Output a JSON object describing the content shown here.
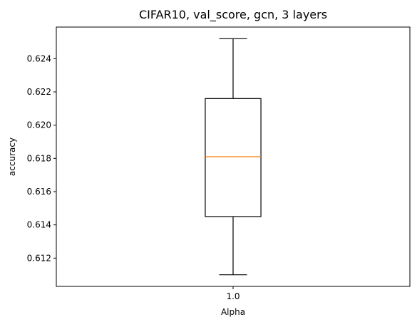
{
  "chart_data": {
    "type": "boxplot",
    "title": "CIFAR10, val_score, gcn, 3 layers",
    "xlabel": "Alpha",
    "ylabel": "accuracy",
    "categories": [
      "1.0"
    ],
    "ylim": [
      0.6103,
      0.6259
    ],
    "yticks": [
      0.612,
      0.614,
      0.616,
      0.618,
      0.62,
      0.622,
      0.624
    ],
    "ytick_labels": [
      "0.612",
      "0.614",
      "0.616",
      "0.618",
      "0.620",
      "0.622",
      "0.624"
    ],
    "boxes": [
      {
        "category": "1.0",
        "whisker_low": 0.611,
        "q1": 0.6145,
        "median": 0.6181,
        "q3": 0.6216,
        "whisker_high": 0.6252
      }
    ],
    "colors": {
      "box": "#000000",
      "median": "#ff7f0e",
      "axes": "#000000"
    },
    "grid": false,
    "legend": "none"
  }
}
